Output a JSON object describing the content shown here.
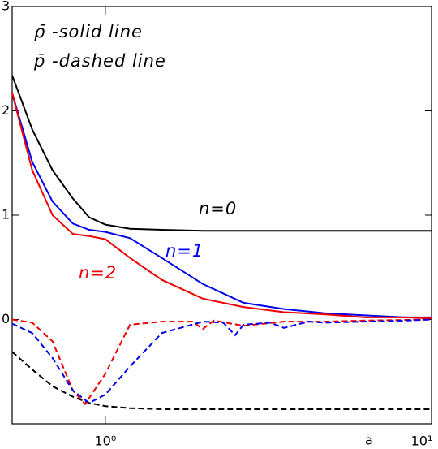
{
  "chart_data": {
    "type": "line",
    "legend_texts": [
      "ρ̄ -solid line",
      "p̄ -dashed line"
    ],
    "annotations": [
      {
        "text": "n=0",
        "color": "#000000"
      },
      {
        "text": "n=1",
        "color": "#0000ee"
      },
      {
        "text": "n=2",
        "color": "#ee0000"
      }
    ],
    "xlabel": "a",
    "xscale": "log",
    "xlim": [
      0.518,
      10
    ],
    "xticks": [
      {
        "value": 1,
        "label": "10⁰"
      },
      {
        "value": 10,
        "label": "10¹"
      }
    ],
    "ylim": [
      -1,
      3
    ],
    "yticks": [
      0,
      1,
      2,
      3
    ],
    "series": [
      {
        "name": "n=0 solid",
        "color": "#000000",
        "dashed": false,
        "x": [
          0.518,
          0.597,
          0.689,
          0.795,
          0.892,
          1,
          1.19,
          1.49,
          1.99,
          2.65,
          3.53,
          4.7,
          6.25,
          8.33,
          10
        ],
        "values": [
          2.34,
          1.82,
          1.43,
          1.16,
          0.98,
          0.91,
          0.87,
          0.86,
          0.85,
          0.85,
          0.85,
          0.85,
          0.85,
          0.85,
          0.85
        ]
      },
      {
        "name": "n=1 solid",
        "color": "#0000ee",
        "dashed": false,
        "x": [
          0.518,
          0.597,
          0.689,
          0.795,
          0.892,
          1,
          1.19,
          1.49,
          1.99,
          2.65,
          3.53,
          4.7,
          6.25,
          8.33,
          10
        ],
        "values": [
          2.17,
          1.51,
          1.13,
          0.92,
          0.86,
          0.84,
          0.78,
          0.59,
          0.34,
          0.16,
          0.1,
          0.06,
          0.04,
          0.02,
          0.02
        ]
      },
      {
        "name": "n=2 solid",
        "color": "#ee0000",
        "dashed": false,
        "x": [
          0.518,
          0.597,
          0.689,
          0.795,
          0.892,
          1,
          1.19,
          1.49,
          1.99,
          2.65,
          3.53,
          4.7,
          6.25,
          8.33,
          10
        ],
        "values": [
          2.17,
          1.43,
          1.0,
          0.82,
          0.8,
          0.77,
          0.59,
          0.38,
          0.2,
          0.12,
          0.07,
          0.05,
          0.02,
          0.02,
          0.01
        ]
      },
      {
        "name": "n=0 dashed",
        "color": "#000000",
        "dashed": true,
        "x": [
          0.518,
          0.597,
          0.689,
          0.795,
          0.892,
          1,
          1.19,
          1.49,
          1.99,
          2.65,
          3.53,
          4.7,
          6.25,
          8.33,
          10
        ],
        "values": [
          -0.31,
          -0.48,
          -0.64,
          -0.74,
          -0.8,
          -0.83,
          -0.85,
          -0.86,
          -0.86,
          -0.86,
          -0.86,
          -0.86,
          -0.86,
          -0.86,
          -0.86
        ]
      },
      {
        "name": "n=2 dashed",
        "color": "#ee0000",
        "dashed": true,
        "x": [
          0.518,
          0.597,
          0.689,
          0.795,
          0.867,
          1,
          1.19,
          1.49,
          1.85,
          1.99,
          2.15,
          2.65,
          3.53,
          4.7,
          6.25,
          10
        ],
        "values": [
          0,
          -0.03,
          -0.21,
          -0.68,
          -0.81,
          -0.52,
          -0.05,
          -0.02,
          -0.02,
          -0.09,
          -0.01,
          -0.06,
          -0.02,
          -0.02,
          -0.01,
          0
        ]
      },
      {
        "name": "n=1 dashed",
        "color": "#0000ee",
        "dashed": true,
        "x": [
          0.518,
          0.597,
          0.689,
          0.795,
          0.892,
          1,
          1.19,
          1.49,
          1.99,
          2.3,
          2.5,
          2.65,
          3.2,
          3.53,
          4.2,
          4.7,
          8.33,
          10
        ],
        "values": [
          -0.04,
          -0.13,
          -0.37,
          -0.68,
          -0.8,
          -0.72,
          -0.45,
          -0.13,
          -0.02,
          -0.03,
          -0.15,
          -0.05,
          -0.03,
          -0.08,
          -0.02,
          -0.03,
          -0.01,
          0
        ]
      }
    ]
  }
}
